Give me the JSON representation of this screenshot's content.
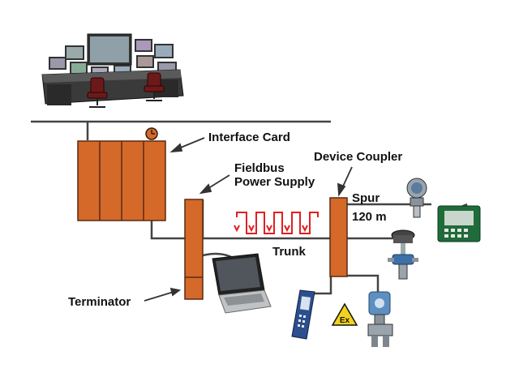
{
  "labels": {
    "interface_card": "Interface Card",
    "power_supply_line1": "Fieldbus",
    "power_supply_line2": "Power Supply",
    "device_coupler": "Device Coupler",
    "spur": "Spur",
    "spur_length": "120 m",
    "trunk": "Trunk",
    "terminator": "Terminator",
    "ex_badge": "Ex"
  },
  "colors": {
    "module_orange": "#d4692a",
    "module_border": "#5a2a10",
    "signal_red": "#e02020",
    "wire": "#444444",
    "ex_yellow": "#f2d21b"
  },
  "icons": {
    "control_room": "operator-console-icon",
    "clock": "clock-icon",
    "laptop": "laptop-icon",
    "handheld": "handheld-communicator-icon",
    "transmitter": "pressure-transmitter-icon",
    "calibrator": "field-calibrator-icon",
    "valve": "control-valve-icon",
    "ex": "explosion-proof-badge-icon"
  }
}
